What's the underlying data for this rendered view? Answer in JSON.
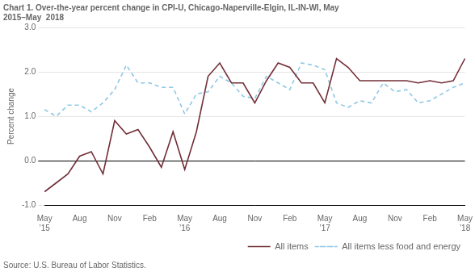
{
  "chart_data": {
    "type": "line",
    "title": "Chart 1. Over-the-year percent change in CPI-U, Chicago-Naperville-Elgin, IL-IN-WI, May\n2015–May  2018",
    "subtitle": "Source: U.S. Bureau of Labor Statistics.",
    "y_label": "Percent change",
    "categories": [
      "May\n’15",
      null,
      null,
      "Aug",
      null,
      null,
      "Nov",
      null,
      null,
      "Feb",
      null,
      null,
      "May\n’16",
      null,
      null,
      "Aug",
      null,
      null,
      "Nov",
      null,
      null,
      "Feb",
      null,
      null,
      "May\n’17",
      null,
      null,
      "Aug",
      null,
      null,
      "Nov",
      null,
      null,
      "Feb",
      null,
      null,
      "May\n’18"
    ],
    "series": [
      {
        "name": "All items",
        "color": "#722F37",
        "line_style": "solid",
        "values": [
          -0.7,
          -0.5,
          -0.3,
          0.1,
          0.2,
          -0.3,
          0.9,
          0.6,
          0.7,
          0.3,
          -0.15,
          0.65,
          -0.2,
          0.65,
          1.9,
          2.2,
          1.75,
          1.75,
          1.3,
          1.8,
          2.2,
          2.1,
          1.75,
          1.75,
          1.3,
          2.3,
          2.1,
          1.8,
          1.8,
          1.8,
          1.8,
          1.8,
          1.75,
          1.8,
          1.75,
          1.8,
          2.3
        ]
      },
      {
        "name": "All items less food and\nenergy",
        "color": "#8FC8E5",
        "line_style": "dashed",
        "values": [
          1.15,
          1.0,
          1.25,
          1.25,
          1.1,
          1.3,
          1.6,
          2.15,
          1.75,
          1.75,
          1.65,
          1.65,
          1.05,
          1.5,
          1.55,
          1.9,
          1.75,
          1.45,
          1.4,
          1.9,
          1.75,
          1.6,
          2.2,
          2.15,
          2.05,
          1.3,
          1.2,
          1.35,
          1.3,
          1.75,
          1.55,
          1.6,
          1.3,
          1.35,
          1.5,
          1.65,
          1.75
        ]
      }
    ],
    "ylim": [
      -1.0,
      3.0
    ],
    "yticks": [
      {
        "value": -1.0,
        "label": "-1.0"
      },
      {
        "value": 0.0,
        "label": "0.0"
      },
      {
        "value": 1.0,
        "label": "1.0"
      },
      {
        "value": 2.0,
        "label": "2.0"
      },
      {
        "value": 3.0,
        "label": "3.0"
      }
    ],
    "grid": "y",
    "legend": "lower right"
  }
}
